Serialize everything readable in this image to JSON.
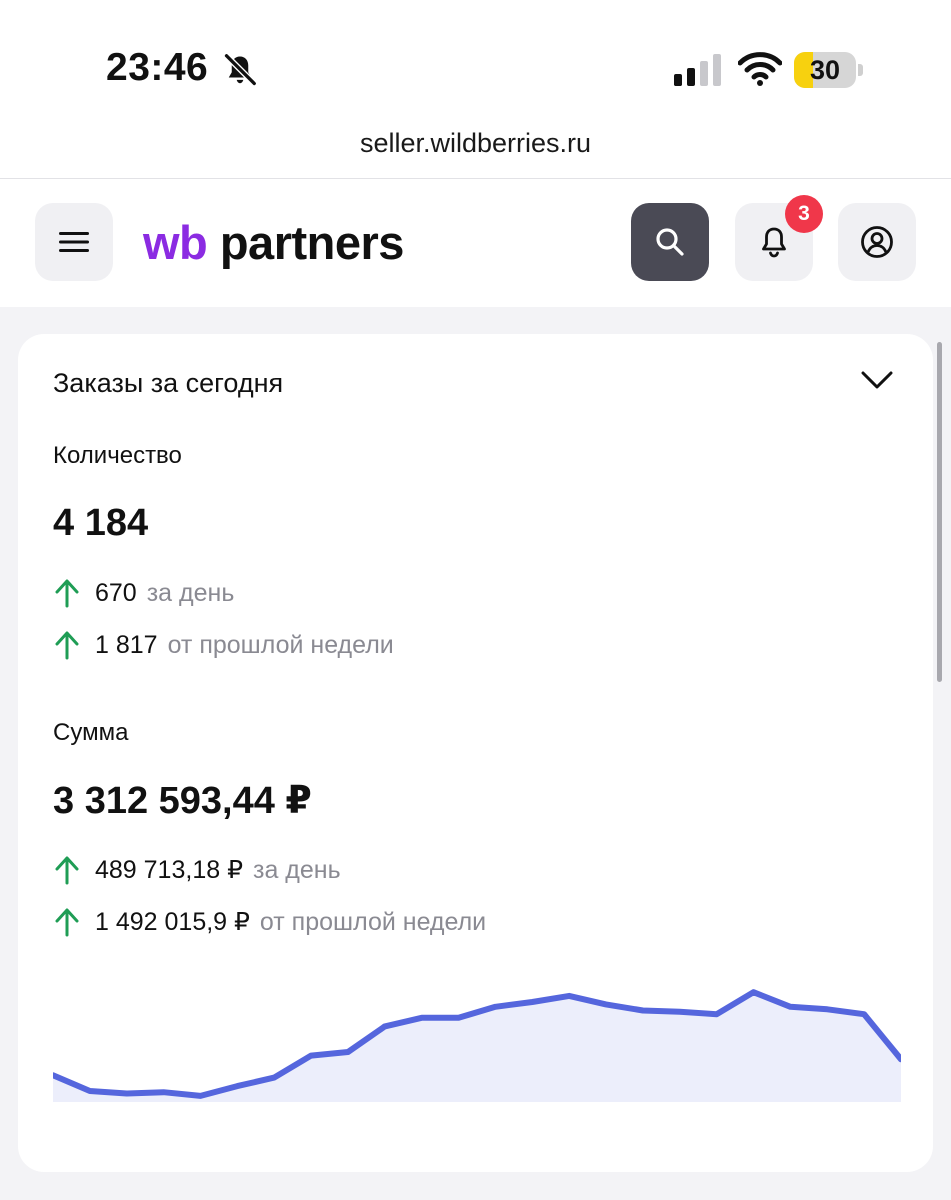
{
  "status_bar": {
    "time": "23:46",
    "battery_level": "30",
    "battery_fraction": 0.3,
    "icons": [
      "bell-slash-icon",
      "cellular-signal-icon",
      "wifi-icon",
      "battery-icon"
    ]
  },
  "browser": {
    "url": "seller.wildberries.ru"
  },
  "header": {
    "logo_wb": "wb",
    "logo_partners": "partners",
    "notification_count": "3",
    "icons": [
      "menu-icon",
      "search-icon",
      "bell-icon",
      "user-circle-icon"
    ]
  },
  "card": {
    "title": "Заказы за сегодня",
    "quantity": {
      "label": "Количество",
      "value": "4 184",
      "day_delta": "670",
      "day_delta_desc": "за день",
      "week_delta": "1 817",
      "week_delta_desc": "от прошлой недели"
    },
    "sum": {
      "label": "Сумма",
      "value": "3 312 593,44 ₽",
      "day_delta": "489 713,18 ₽",
      "day_delta_desc": "за день",
      "week_delta": "1 492 015,9 ₽",
      "week_delta_desc": "от прошлой недели"
    }
  },
  "colors": {
    "brand_purple": "#8b2be2",
    "line": "#5566dd",
    "area_fill": "#eceefb",
    "up_arrow": "#1f9d55",
    "badge": "#f0374a"
  },
  "chart_data": {
    "type": "area",
    "values": [
      0.22,
      0.09,
      0.07,
      0.08,
      0.05,
      0.13,
      0.2,
      0.38,
      0.41,
      0.62,
      0.69,
      0.69,
      0.78,
      0.82,
      0.87,
      0.8,
      0.75,
      0.74,
      0.72,
      0.9,
      0.78,
      0.76,
      0.72,
      0.35
    ]
  }
}
